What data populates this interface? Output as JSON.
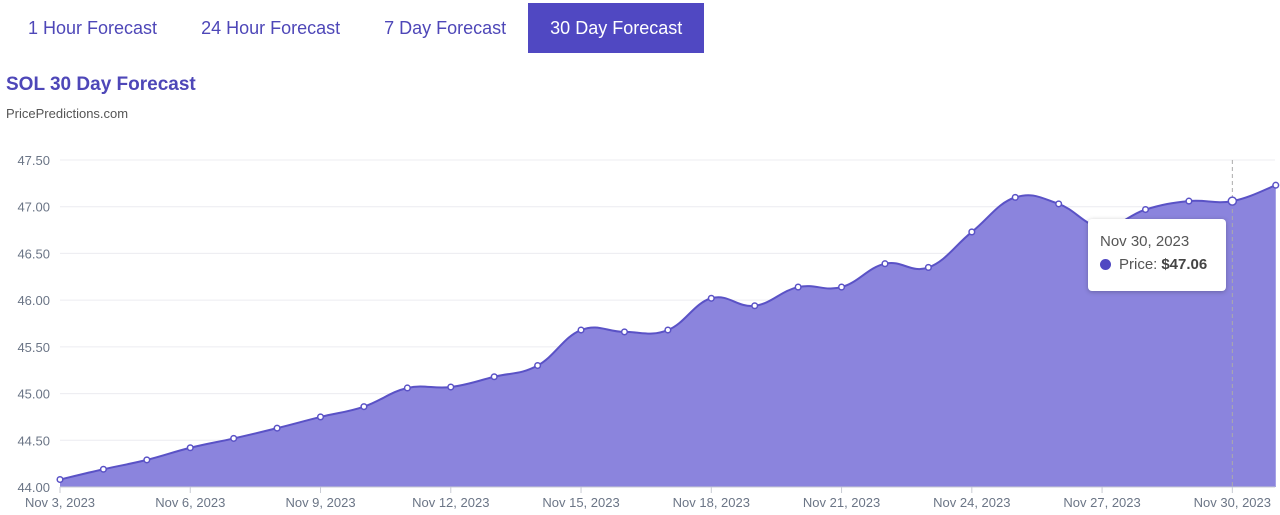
{
  "tabs": [
    {
      "label": "1 Hour Forecast",
      "active": false
    },
    {
      "label": "24 Hour Forecast",
      "active": false
    },
    {
      "label": "7 Day Forecast",
      "active": false
    },
    {
      "label": "30 Day Forecast",
      "active": true
    }
  ],
  "header": {
    "title": "SOL 30 Day Forecast",
    "subtitle": "PricePredictions.com"
  },
  "tooltip": {
    "date": "Nov 30, 2023",
    "label": "Price:",
    "value": "$47.06"
  },
  "colors": {
    "accent": "#5048c2",
    "fill": "#8b84dd",
    "line": "#5a52c6"
  },
  "chart_data": {
    "type": "area",
    "title": "SOL 30 Day Forecast",
    "subtitle": "PricePredictions.com",
    "xlabel": "",
    "ylabel": "",
    "ylim": [
      44.0,
      47.5
    ],
    "yticks": [
      "44.00",
      "44.50",
      "45.00",
      "45.50",
      "46.00",
      "46.50",
      "47.00",
      "47.50"
    ],
    "xticks": [
      "Nov 3, 2023",
      "Nov 6, 2023",
      "Nov 9, 2023",
      "Nov 12, 2023",
      "Nov 15, 2023",
      "Nov 18, 2023",
      "Nov 21, 2023",
      "Nov 24, 2023",
      "Nov 27, 2023",
      "Nov 30, 2023"
    ],
    "grid": true,
    "legend": "none",
    "series": [
      {
        "name": "Price",
        "x": [
          "Nov 3",
          "Nov 4",
          "Nov 5",
          "Nov 6",
          "Nov 7",
          "Nov 8",
          "Nov 9",
          "Nov 10",
          "Nov 11",
          "Nov 12",
          "Nov 13",
          "Nov 14",
          "Nov 15",
          "Nov 16",
          "Nov 17",
          "Nov 18",
          "Nov 19",
          "Nov 20",
          "Nov 21",
          "Nov 22",
          "Nov 23",
          "Nov 24",
          "Nov 25",
          "Nov 26",
          "Nov 27",
          "Nov 28",
          "Nov 29",
          "Nov 30",
          "Dec 1"
        ],
        "values": [
          44.08,
          44.19,
          44.29,
          44.42,
          44.52,
          44.63,
          44.75,
          44.86,
          45.06,
          45.07,
          45.18,
          45.3,
          45.68,
          45.66,
          45.68,
          46.02,
          45.94,
          46.14,
          46.14,
          46.39,
          46.35,
          46.73,
          47.1,
          47.03,
          46.78,
          46.97,
          47.06,
          47.06,
          47.23
        ]
      }
    ],
    "annotations": [
      {
        "type": "tooltip",
        "x": "Nov 30, 2023",
        "text": "Price: $47.06"
      }
    ]
  }
}
